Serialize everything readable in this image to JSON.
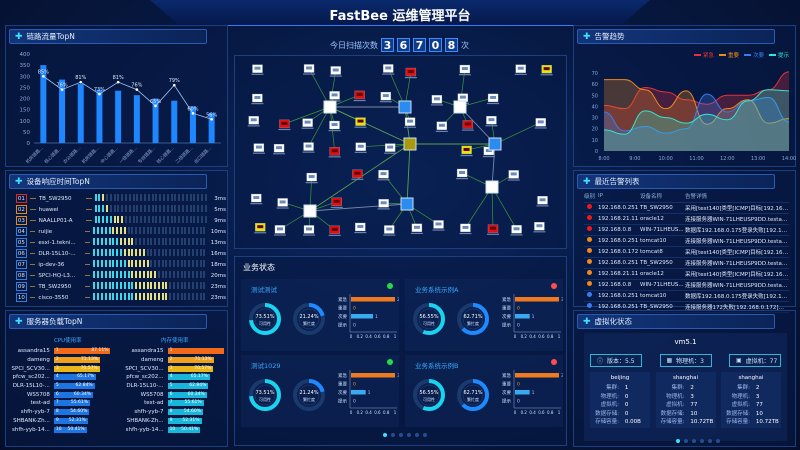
{
  "header": {
    "title": "FastBee 运维管理平台",
    "scan_label": "今日扫描次数",
    "scan_digits": [
      "3",
      "6",
      "7",
      "0",
      "8"
    ],
    "scan_unit": "次"
  },
  "link_traffic": {
    "title": "链路流量TopN"
  },
  "device_response": {
    "title": "设备响应时间TopN",
    "rows": [
      {
        "rank": "01",
        "name": "TB_SW2950",
        "ms": 3,
        "time": "3ms",
        "color": "#e0242a"
      },
      {
        "rank": "02",
        "name": "huawei",
        "ms": 5,
        "time": "5ms",
        "color": "#e88a1a"
      },
      {
        "rank": "03",
        "name": "NAALLP01-A",
        "ms": 9,
        "time": "9ms",
        "color": "#e88a1a"
      },
      {
        "rank": "04",
        "name": "ruijie",
        "ms": 10,
        "time": "10ms",
        "color": "#2d7fe0"
      },
      {
        "rank": "05",
        "name": "esxi-1.tekni...",
        "ms": 13,
        "time": "13ms",
        "color": "#2d7fe0"
      },
      {
        "rank": "06",
        "name": "DLR-15L10-...",
        "ms": 16,
        "time": "16ms",
        "color": "#2d7fe0"
      },
      {
        "rank": "07",
        "name": "ip-dev-36",
        "ms": 18,
        "time": "18ms",
        "color": "#2d7fe0"
      },
      {
        "rank": "08",
        "name": "SPCI-HQ-L3...",
        "ms": 20,
        "time": "20ms",
        "color": "#2d7fe0"
      },
      {
        "rank": "09",
        "name": "TB_SW2950",
        "ms": 23,
        "time": "23ms",
        "color": "#2d7fe0"
      },
      {
        "rank": "10",
        "name": "cisco-3550",
        "ms": 23,
        "time": "23ms",
        "color": "#2d7fe0"
      }
    ]
  },
  "server_load": {
    "title": "服务器负载TopN",
    "cpu_label": "CPU使用率",
    "mem_label": "内存使用率",
    "names": [
      "assandra15",
      "dameng",
      "SPCI_SCV30...",
      "pfcw_sc202...",
      "DLR-15L10-...",
      "WS5708",
      "test-ad",
      "shfh-yyb-7",
      "SHBANK-Zh...",
      "shfh-yyb-14..."
    ],
    "cpu": [
      {
        "v": 87.11,
        "t": "87.11%"
      },
      {
        "v": 71.13,
        "t": "71.13%"
      },
      {
        "v": 70.57,
        "t": "70.57%"
      },
      {
        "v": 65.17,
        "t": "65.17%"
      },
      {
        "v": 62.84,
        "t": "62.84%"
      },
      {
        "v": 60.34,
        "t": "60.34%"
      },
      {
        "v": 55.61,
        "t": "55.61%"
      },
      {
        "v": 54.6,
        "t": "54.60%"
      },
      {
        "v": 52.31,
        "t": "52.31%"
      },
      {
        "v": 50.41,
        "t": "50.41%"
      }
    ],
    "mem": [
      {
        "v": 87.11,
        "t": ""
      },
      {
        "v": 71.13,
        "t": "71.13%"
      },
      {
        "v": 70.57,
        "t": "70.57%"
      },
      {
        "v": 65.17,
        "t": "65.17%"
      },
      {
        "v": 62.84,
        "t": "62.84%"
      },
      {
        "v": 60.34,
        "t": "60.34%"
      },
      {
        "v": 55.61,
        "t": "55.61%"
      },
      {
        "v": 54.6,
        "t": "54.60%"
      },
      {
        "v": 52.31,
        "t": "52.31%"
      },
      {
        "v": 50.41,
        "t": "50.41%"
      }
    ],
    "cpu_colors": [
      "#f06a1a",
      "#f0a01a",
      "#e8b61a",
      "#1e74e0",
      "#1e74e0",
      "#1e74e0",
      "#1e74e0",
      "#1e74e0",
      "#1e74e0",
      "#1e74e0"
    ],
    "mem_colors": [
      "#f06a1a",
      "#f0a01a",
      "#e8b61a",
      "#19b6dc",
      "#19b6dc",
      "#19b6dc",
      "#19b6dc",
      "#19b6dc",
      "#19b6dc",
      "#19b6dc"
    ]
  },
  "business": {
    "title": "业务状态",
    "level_labels": [
      "紧急",
      "重要",
      "次要",
      "提示"
    ],
    "axis_ticks": [
      "0",
      "0.2",
      "0.4",
      "0.6",
      "0.8",
      "1"
    ],
    "cards": [
      {
        "name": "测试测试",
        "status_color": "#22dd44",
        "availability": 73.51,
        "avail_text": "73.51%",
        "avail_label": "可用性",
        "busy": 21.24,
        "busy_text": "21.24%",
        "busy_label": "繁忙度",
        "counts": [
          2,
          0,
          1,
          0
        ]
      },
      {
        "name": "业务系统示例A",
        "status_color": "#ff4d4d",
        "availability": 56.55,
        "avail_text": "56.55%",
        "avail_label": "可用性",
        "busy": 62.71,
        "busy_text": "62.71%",
        "busy_label": "繁忙度",
        "counts": [
          3,
          0,
          1,
          0
        ]
      },
      {
        "name": "测试1029",
        "status_color": "#22dd44",
        "availability": 73.51,
        "avail_text": "73.51%",
        "avail_label": "可用性",
        "busy": 21.24,
        "busy_text": "21.24%",
        "busy_label": "繁忙度",
        "counts": [
          3,
          0,
          1,
          0
        ]
      },
      {
        "name": "业务系统示例B",
        "status_color": "#ff4d4d",
        "availability": 56.55,
        "avail_text": "56.55%",
        "avail_label": "可用性",
        "busy": 62.71,
        "busy_text": "62.71%",
        "busy_label": "繁忙度",
        "counts": [
          3,
          0,
          1,
          0
        ]
      }
    ]
  },
  "alarm_trend": {
    "title": "告警趋势"
  },
  "alarm_list": {
    "title": "最近告警列表",
    "columns": [
      "级别",
      "IP",
      "设备名称",
      "告警详情"
    ],
    "level_colors": {
      "red": "#f01a1a",
      "orange": "#f08a1a",
      "blue": "#3a7cf0"
    },
    "rows": [
      {
        "level": "red",
        "ip": "192.168.0.251",
        "device": "TB_SW2950",
        "detail": "采用[test140]类型[ICMP]目标[192.168..."
      },
      {
        "level": "red",
        "ip": "192.168.21.11",
        "device": "oracle12",
        "detail": "连接服务器WIN-71LHEUSP9DD.testad..."
      },
      {
        "level": "red",
        "ip": "192.168.0.8",
        "device": "WIN-71LHEUS...",
        "detail": "数据库192.168.0.175登录失败[192.168..."
      },
      {
        "level": "orange",
        "ip": "192.168.0.251",
        "device": "tomcat10",
        "detail": "连接服务器WIN-71LHEUSP9DD.testad..."
      },
      {
        "level": "orange",
        "ip": "192.168.0.172",
        "device": "tomcat8",
        "detail": "采用[test140]类型[ICMP]目标[192.168..."
      },
      {
        "level": "orange",
        "ip": "192.168.0.251",
        "device": "TB_SW2950",
        "detail": "连接服务器WIN-71LHEUSP9DD.testad..."
      },
      {
        "level": "orange",
        "ip": "192.168.21.11",
        "device": "oracle12",
        "detail": "采用[test140]类型[ICMP]目标[192.168..."
      },
      {
        "level": "orange",
        "ip": "192.168.0.8",
        "device": "WIN-71LHEUS...",
        "detail": "连接服务器WIN-71LHEUSP9DD.testad..."
      },
      {
        "level": "blue",
        "ip": "192.168.0.251",
        "device": "tomcat10",
        "detail": "数据库192.168.0.175登录失败[192.168..."
      },
      {
        "level": "blue",
        "ip": "192.168.0.251",
        "device": "TB_SW2950",
        "detail": "连接服务器172失败[192.168.0.172]连..."
      }
    ]
  },
  "virtualization": {
    "title": "虚拟化状态",
    "name": "vm5.1",
    "version": "版本：5.5",
    "hosts": "物理机：3",
    "vms": "虚拟机：77",
    "sites": [
      {
        "name": "beijing",
        "items": [
          [
            "集群:",
            "1"
          ],
          [
            "物理机:",
            "0"
          ],
          [
            "虚拟机:",
            "0"
          ],
          [
            "数据存储:",
            "0"
          ],
          [
            "存储容量:",
            "0.00B"
          ]
        ]
      },
      {
        "name": "shanghai",
        "items": [
          [
            "集群:",
            "2"
          ],
          [
            "物理机:",
            "3"
          ],
          [
            "虚拟机:",
            "77"
          ],
          [
            "数据存储:",
            "10"
          ],
          [
            "存储容量:",
            "10.72TB"
          ]
        ]
      },
      {
        "name": "shanghai",
        "items": [
          [
            "集群:",
            "2"
          ],
          [
            "物理机:",
            "3"
          ],
          [
            "虚拟机:",
            "77"
          ],
          [
            "数据存储:",
            "10"
          ],
          [
            "存储容量:",
            "10.72TB"
          ]
        ]
      }
    ]
  },
  "chart_data": [
    {
      "type": "bar",
      "title": "链路流量TopN",
      "categories": [
        "机房链路...",
        "核心链路...",
        "办公链路...",
        "机房链路...",
        "中心链路...",
        "一级链路...",
        "专线链路...",
        "核心链路...",
        "二级链路...",
        "出口链路..."
      ],
      "values": [
        350,
        285,
        265,
        240,
        235,
        215,
        200,
        190,
        165,
        135
      ],
      "ylim": [
        0,
        400
      ],
      "yticks": [
        0,
        50,
        100,
        150,
        200,
        250,
        300,
        350,
        400
      ],
      "line": {
        "values": [
          85,
          76,
          81,
          73,
          81,
          76,
          65,
          79,
          60,
          56
        ],
        "labels": [
          "85%",
          "76%",
          "81%",
          "73%",
          "81%",
          "76%",
          "65%",
          "79%",
          "60%",
          "56%"
        ]
      },
      "bar_color": "#1e86ff"
    },
    {
      "type": "area",
      "title": "告警趋势",
      "x": [
        "8:00",
        "8:40",
        "9:20",
        "10:00",
        "10:40",
        "11:20",
        "12:00",
        "12:40",
        "13:20",
        "14:00"
      ],
      "xticks": [
        "8:00",
        "9:00",
        "10:00",
        "11:00",
        "12:00",
        "13:00",
        "14:00"
      ],
      "ylim": [
        0,
        70
      ],
      "yticks": [
        0,
        10,
        20,
        30,
        40,
        50,
        60,
        70
      ],
      "legend": "top-right",
      "series": [
        {
          "name": "紧急",
          "color": "#e8303a",
          "values": [
            41,
            38,
            57,
            53,
            46,
            42,
            50,
            50,
            55,
            71
          ]
        },
        {
          "name": "重要",
          "color": "#f08a1a",
          "values": [
            64,
            64,
            55,
            38,
            54,
            24,
            38,
            46,
            25,
            29
          ]
        },
        {
          "name": "次要",
          "color": "#3a7cf0",
          "values": [
            35,
            18,
            22,
            16,
            20,
            51,
            35,
            45,
            48,
            26
          ]
        },
        {
          "name": "提示",
          "color": "#2ee8d0",
          "values": [
            19,
            15,
            36,
            30,
            25,
            33,
            28,
            45,
            55,
            54
          ]
        }
      ]
    }
  ]
}
